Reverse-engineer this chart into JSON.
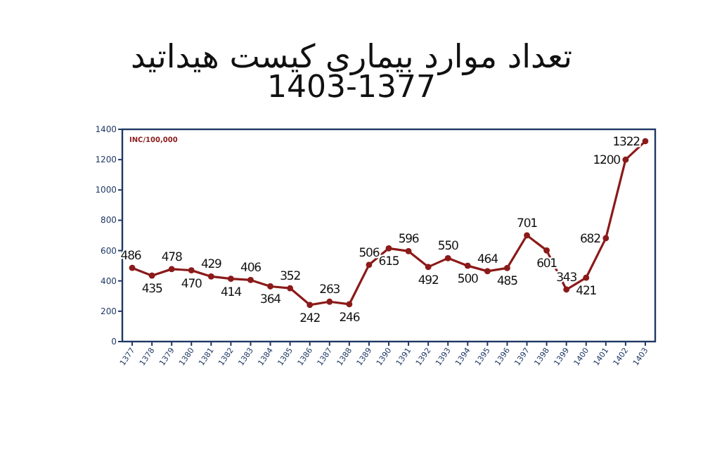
{
  "chart_data": {
    "type": "line",
    "title": "تعداد موارد  بیماری کیست هیداتید",
    "subtitle": "1403-1377",
    "categories": [
      "1377",
      "1378",
      "1379",
      "1380",
      "1381",
      "1382",
      "1383",
      "1384",
      "1385",
      "1386",
      "1387",
      "1388",
      "1389",
      "1390",
      "1391",
      "1392",
      "1393",
      "1394",
      "1395",
      "1396",
      "1397",
      "1398",
      "1399",
      "1400",
      "1401",
      "1402",
      "1403"
    ],
    "values": [
      486,
      435,
      478,
      470,
      429,
      414,
      406,
      364,
      352,
      242,
      263,
      246,
      506,
      615,
      596,
      492,
      550,
      500,
      464,
      485,
      701,
      601,
      343,
      421,
      682,
      1200,
      1322
    ],
    "color": "#8b1a1a",
    "marker": "circle",
    "data_labels": true,
    "ylim": [
      0,
      1400
    ],
    "yticks": [
      0,
      200,
      400,
      600,
      800,
      1000,
      1200,
      1400
    ],
    "annotations": [
      "INC/100,000"
    ]
  }
}
